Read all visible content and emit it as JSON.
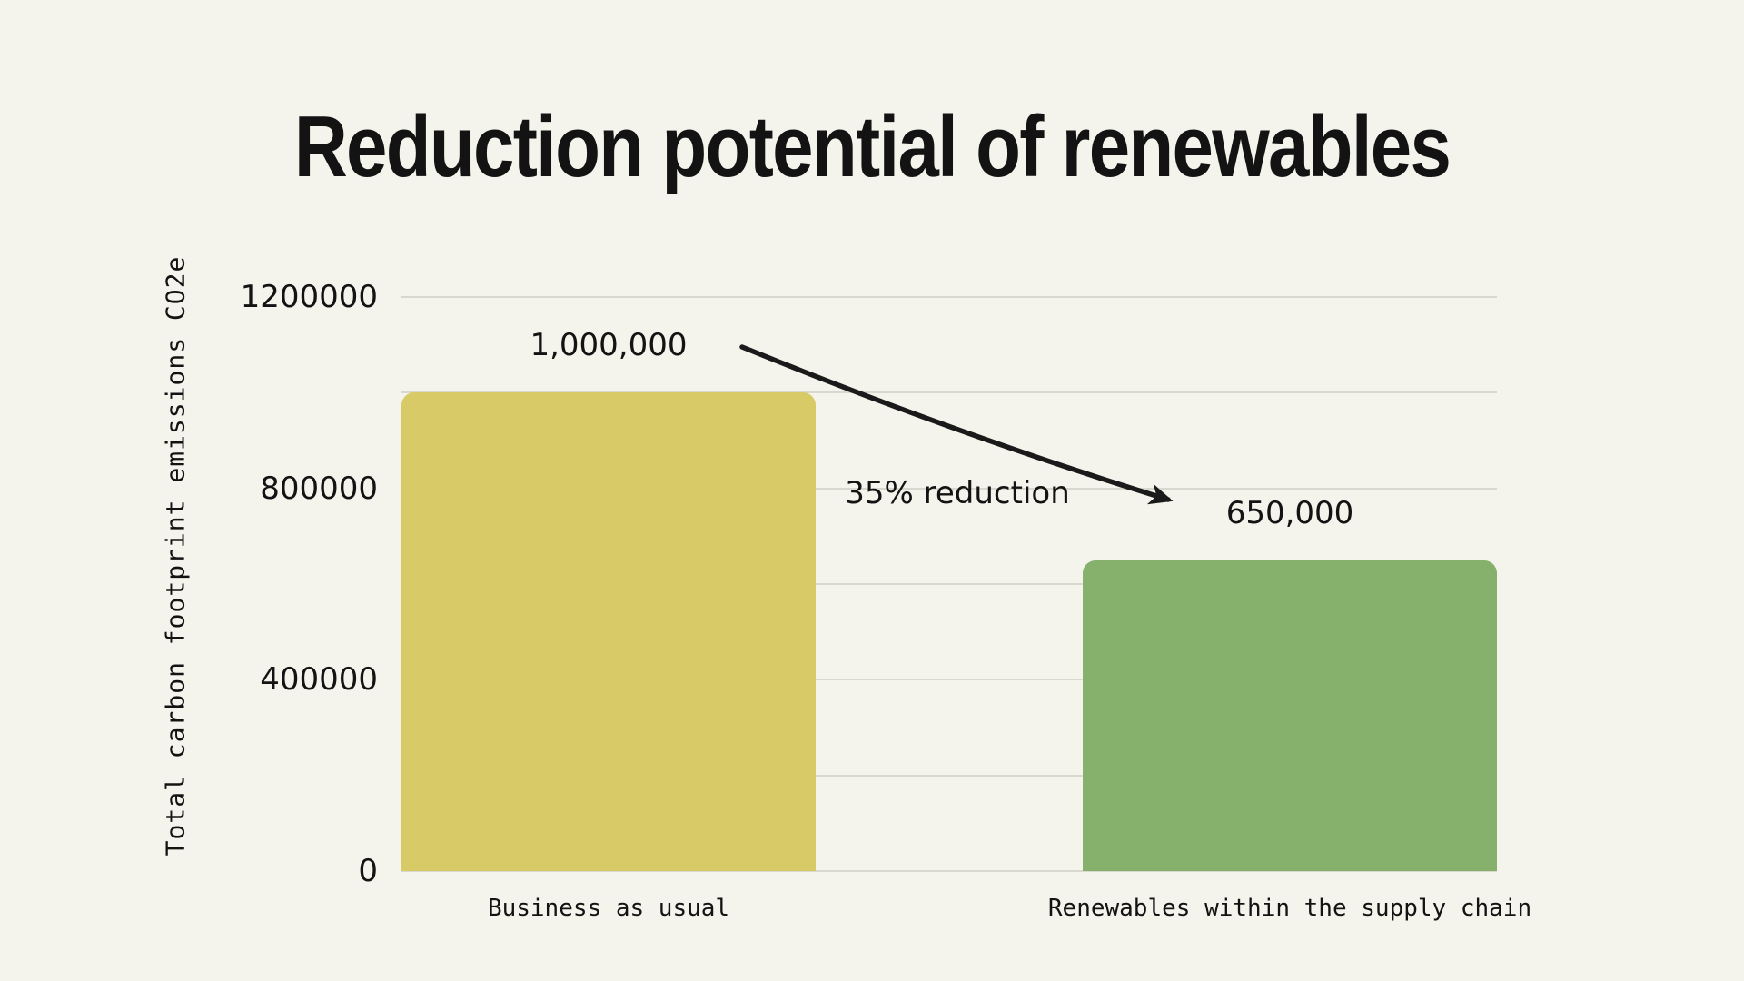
{
  "style": {
    "background": "#F5F4EC",
    "grid_color": "#D9D8CF",
    "text_color": "#131313",
    "arrow_color": "#1A1A1A"
  },
  "chart_data": {
    "type": "bar",
    "title": "Reduction potential of renewables",
    "ylabel": "Total carbon footprint emissions CO2e",
    "xlabel": "",
    "categories": [
      "Business as usual",
      "Renewables within the supply chain"
    ],
    "values": [
      1000000,
      650000
    ],
    "bar_labels": [
      "1,000,000",
      "650,000"
    ],
    "bar_colors": [
      "#D8CA66",
      "#86B16C"
    ],
    "ylim": [
      0,
      1200000
    ],
    "gridline_values": [
      0,
      200000,
      400000,
      600000,
      800000,
      1000000,
      1200000
    ],
    "ytick_labels": [
      {
        "value": 0,
        "label": "0"
      },
      {
        "value": 400000,
        "label": "400000"
      },
      {
        "value": 800000,
        "label": "800000"
      },
      {
        "value": 1200000,
        "label": "1200000"
      }
    ],
    "grid": true,
    "legend": "none",
    "annotation": {
      "text": "35% reduction"
    }
  }
}
